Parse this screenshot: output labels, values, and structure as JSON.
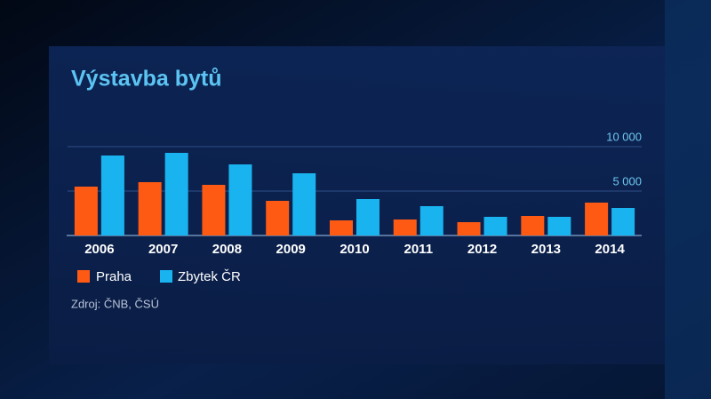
{
  "chart_data": {
    "type": "bar",
    "title": "Výstavba bytů",
    "categories": [
      "2006",
      "2007",
      "2008",
      "2009",
      "2010",
      "2011",
      "2012",
      "2013",
      "2014"
    ],
    "series": [
      {
        "name": "Praha",
        "color": "#ff5a14",
        "values": [
          5500,
          6000,
          5700,
          3900,
          1700,
          1800,
          1500,
          2200,
          3700
        ]
      },
      {
        "name": "Zbytek ČR",
        "color": "#19b4f0",
        "values": [
          9000,
          9300,
          8000,
          7000,
          4100,
          3300,
          2100,
          2100,
          3100
        ]
      }
    ],
    "ylim": [
      0,
      10000
    ],
    "yticks": [
      {
        "value": 5000,
        "label": "5 000"
      },
      {
        "value": 10000,
        "label": "10 000"
      }
    ],
    "grid": true,
    "source": "Zdroj: ČNB, ČSÚ"
  }
}
